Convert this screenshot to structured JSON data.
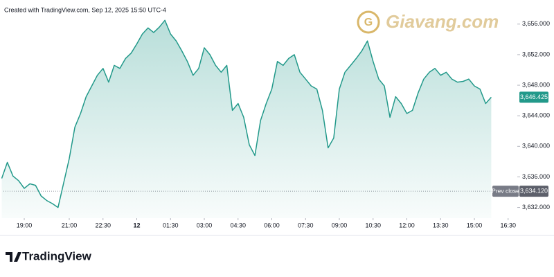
{
  "header": "Created with TradingView.com, Sep 12, 2025 15:50 UTC-4",
  "watermark": "Giavang.com",
  "footer": "TradingView",
  "chart_data": {
    "type": "line",
    "x": [
      "18:00",
      "18:15",
      "18:30",
      "18:45",
      "19:00",
      "19:15",
      "19:30",
      "19:45",
      "20:00",
      "20:15",
      "20:30",
      "20:45",
      "21:00",
      "21:15",
      "21:30",
      "21:45",
      "22:00",
      "22:15",
      "22:30",
      "22:45",
      "23:00",
      "23:15",
      "23:30",
      "23:45",
      "00:00",
      "00:15",
      "00:30",
      "00:45",
      "01:00",
      "01:15",
      "01:30",
      "01:45",
      "02:00",
      "02:15",
      "02:30",
      "02:45",
      "03:00",
      "03:15",
      "03:30",
      "03:45",
      "04:00",
      "04:15",
      "04:30",
      "04:45",
      "05:00",
      "05:15",
      "05:30",
      "05:45",
      "06:00",
      "06:15",
      "06:30",
      "06:45",
      "07:00",
      "07:15",
      "07:30",
      "07:45",
      "08:00",
      "08:15",
      "08:30",
      "08:45",
      "09:00",
      "09:15",
      "09:30",
      "09:45",
      "10:00",
      "10:15",
      "10:30",
      "10:45",
      "11:00",
      "11:15",
      "11:30",
      "11:45",
      "12:00",
      "12:15",
      "12:30",
      "12:45",
      "13:00",
      "13:15",
      "13:30",
      "13:45",
      "14:00",
      "14:15",
      "14:30",
      "14:45",
      "15:00",
      "15:15",
      "15:30",
      "15:45"
    ],
    "series": [
      {
        "color": "#22998a",
        "values": [
          3635.8,
          3637.9,
          3636.1,
          3635.5,
          3634.5,
          3635.1,
          3634.9,
          3633.5,
          3632.9,
          3632.5,
          3632.0,
          3635.2,
          3638.4,
          3642.5,
          3644.3,
          3646.5,
          3647.9,
          3649.3,
          3650.2,
          3648.4,
          3650.6,
          3650.2,
          3651.5,
          3652.2,
          3653.4,
          3654.7,
          3655.5,
          3654.9,
          3655.6,
          3656.5,
          3654.7,
          3653.8,
          3652.5,
          3651.1,
          3649.3,
          3650.2,
          3652.9,
          3652.0,
          3650.6,
          3649.7,
          3650.6,
          3644.7,
          3645.6,
          3643.8,
          3640.2,
          3638.8,
          3643.4,
          3645.6,
          3647.5,
          3651.1,
          3650.6,
          3651.5,
          3652.0,
          3649.7,
          3648.8,
          3647.9,
          3647.5,
          3644.7,
          3639.8,
          3641.1,
          3647.5,
          3649.7,
          3650.6,
          3651.5,
          3652.5,
          3653.8,
          3651.1,
          3648.8,
          3647.9,
          3643.8,
          3646.5,
          3645.6,
          3644.3,
          3644.7,
          3647.0,
          3648.8,
          3649.7,
          3650.2,
          3649.3,
          3649.7,
          3648.8,
          3648.4,
          3648.5,
          3648.8,
          3647.9,
          3647.5,
          3645.6,
          3646.425
        ]
      }
    ],
    "ylim": [
      3630.6,
      3658.7
    ],
    "yticks": [
      {
        "value": 3632,
        "label": "3,632.000"
      },
      {
        "value": 3636,
        "label": "3,636.000"
      },
      {
        "value": 3640,
        "label": "3,640.000"
      },
      {
        "value": 3644,
        "label": "3,644.000"
      },
      {
        "value": 3648,
        "label": "3,648.000"
      },
      {
        "value": 3652,
        "label": "3,652.000"
      },
      {
        "value": 3656,
        "label": "3,656.000"
      }
    ],
    "xticks": [
      "19:00",
      "21:00",
      "22:30",
      {
        "value": "00:00",
        "label": "12"
      },
      "01:30",
      "03:00",
      "04:30",
      "06:00",
      "07:30",
      "09:00",
      "10:30",
      "12:00",
      "13:30",
      "15:00",
      "16:30"
    ],
    "last_price": {
      "value": 3646.425,
      "label": "3,646.425"
    },
    "prev_close": {
      "name": "Prev close",
      "value": 3634.12,
      "label": "3,634.120"
    }
  }
}
